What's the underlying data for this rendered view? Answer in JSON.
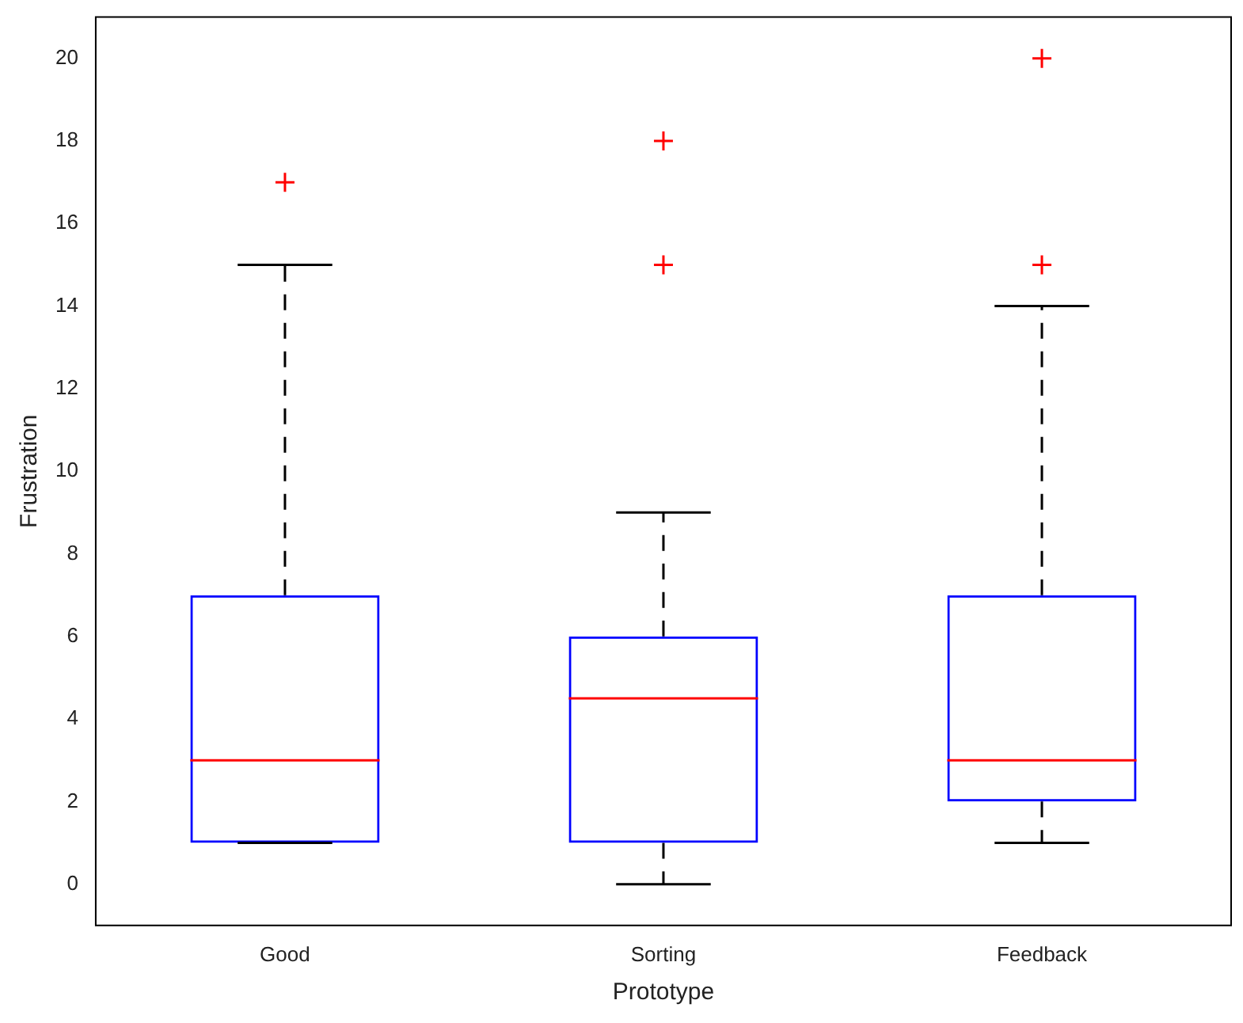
{
  "chart_data": {
    "type": "box",
    "xlabel": "Prototype",
    "ylabel": "Frustration",
    "categories": [
      "Good",
      "Sorting",
      "Feedback"
    ],
    "boxes": [
      {
        "low": 1,
        "q1": 1,
        "median": 3,
        "q3": 7,
        "high": 15,
        "outliers": [
          17
        ]
      },
      {
        "low": 0,
        "q1": 1,
        "median": 4.5,
        "q3": 6,
        "high": 9,
        "outliers": [
          15,
          18
        ]
      },
      {
        "low": 1,
        "q1": 2,
        "median": 3,
        "q3": 7,
        "high": 14,
        "outliers": [
          15,
          20
        ]
      }
    ],
    "color": "#0000ff",
    "ylim": [
      -1,
      21
    ],
    "yticks": [
      0,
      2,
      4,
      6,
      8,
      10,
      12,
      14,
      16,
      18,
      20
    ],
    "grid": false,
    "marker": "cross",
    "legend": false
  }
}
